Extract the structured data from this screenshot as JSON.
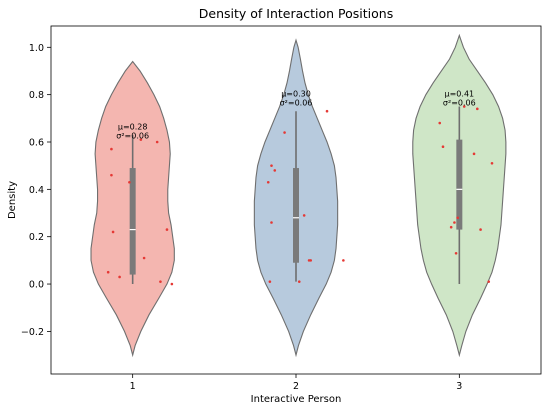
{
  "chart_data": {
    "type": "violin",
    "title": "Density of Interaction Positions",
    "xlabel": "Interactive Person",
    "ylabel": "Density",
    "ylim": [
      -0.38,
      1.09
    ],
    "xlim": [
      0.5,
      3.5
    ],
    "yticks": [
      -0.2,
      0.0,
      0.2,
      0.4,
      0.6,
      0.8,
      1.0
    ],
    "ytick_labels": [
      "−0.2",
      "0.0",
      "0.2",
      "0.4",
      "0.6",
      "0.8",
      "1.0"
    ],
    "categories": [
      1,
      2,
      3
    ],
    "category_labels": [
      "1",
      "2",
      "3"
    ],
    "grid": false,
    "violins": [
      {
        "category": 1,
        "color": "#f4b6b0",
        "mean_label": "μ=0.28",
        "var_label": "σ²=0.06",
        "annot_y": 0.64,
        "whisker": [
          0.0,
          0.63
        ],
        "box": [
          0.04,
          0.49
        ],
        "median": 0.23,
        "profile": [
          [
            -0.3,
            0.0
          ],
          [
            -0.26,
            0.015
          ],
          [
            -0.2,
            0.05
          ],
          [
            -0.13,
            0.1
          ],
          [
            -0.06,
            0.16
          ],
          [
            0.0,
            0.21
          ],
          [
            0.05,
            0.24
          ],
          [
            0.1,
            0.255
          ],
          [
            0.15,
            0.255
          ],
          [
            0.2,
            0.245
          ],
          [
            0.25,
            0.235
          ],
          [
            0.3,
            0.22
          ],
          [
            0.35,
            0.215
          ],
          [
            0.4,
            0.215
          ],
          [
            0.45,
            0.22
          ],
          [
            0.5,
            0.225
          ],
          [
            0.55,
            0.23
          ],
          [
            0.6,
            0.225
          ],
          [
            0.65,
            0.21
          ],
          [
            0.7,
            0.19
          ],
          [
            0.75,
            0.165
          ],
          [
            0.8,
            0.13
          ],
          [
            0.85,
            0.09
          ],
          [
            0.9,
            0.045
          ],
          [
            0.94,
            0.0
          ]
        ],
        "points": [
          [
            -0.02,
            0.43
          ],
          [
            0.15,
            0.6
          ],
          [
            -0.15,
            0.05
          ],
          [
            -0.08,
            0.03
          ],
          [
            0.07,
            0.11
          ],
          [
            0.17,
            0.01
          ],
          [
            0.24,
            0.0
          ],
          [
            0.21,
            0.23
          ],
          [
            -0.12,
            0.22
          ],
          [
            -0.13,
            0.46
          ],
          [
            -0.13,
            0.57
          ],
          [
            0.05,
            0.61
          ]
        ]
      },
      {
        "category": 2,
        "color": "#b7cadd",
        "mean_label": "μ=0.30",
        "var_label": "σ²=0.06",
        "annot_y": 0.78,
        "whisker": [
          0.01,
          0.73
        ],
        "box": [
          0.09,
          0.49
        ],
        "median": 0.28,
        "profile": [
          [
            -0.3,
            0.0
          ],
          [
            -0.26,
            0.015
          ],
          [
            -0.2,
            0.045
          ],
          [
            -0.13,
            0.09
          ],
          [
            -0.06,
            0.14
          ],
          [
            0.0,
            0.185
          ],
          [
            0.05,
            0.215
          ],
          [
            0.1,
            0.235
          ],
          [
            0.15,
            0.245
          ],
          [
            0.2,
            0.25
          ],
          [
            0.25,
            0.255
          ],
          [
            0.3,
            0.255
          ],
          [
            0.35,
            0.255
          ],
          [
            0.4,
            0.25
          ],
          [
            0.45,
            0.245
          ],
          [
            0.5,
            0.235
          ],
          [
            0.55,
            0.215
          ],
          [
            0.6,
            0.19
          ],
          [
            0.65,
            0.16
          ],
          [
            0.7,
            0.13
          ],
          [
            0.75,
            0.1
          ],
          [
            0.8,
            0.075
          ],
          [
            0.85,
            0.055
          ],
          [
            0.9,
            0.04
          ],
          [
            0.95,
            0.027
          ],
          [
            1.0,
            0.013
          ],
          [
            1.03,
            0.0
          ]
        ],
        "points": [
          [
            -0.17,
            0.43
          ],
          [
            -0.15,
            0.26
          ],
          [
            -0.16,
            0.01
          ],
          [
            -0.07,
            0.64
          ],
          [
            -0.15,
            0.5
          ],
          [
            -0.13,
            0.48
          ],
          [
            0.02,
            0.01
          ],
          [
            0.05,
            0.29
          ],
          [
            0.08,
            0.1
          ],
          [
            0.09,
            0.1
          ],
          [
            0.29,
            0.1
          ],
          [
            0.19,
            0.73
          ]
        ]
      },
      {
        "category": 3,
        "color": "#cfe6c7",
        "mean_label": "μ=0.41",
        "var_label": "σ²=0.06",
        "annot_y": 0.78,
        "whisker": [
          0.0,
          0.75
        ],
        "box": [
          0.23,
          0.61
        ],
        "median": 0.4,
        "profile": [
          [
            -0.3,
            0.0
          ],
          [
            -0.26,
            0.015
          ],
          [
            -0.2,
            0.04
          ],
          [
            -0.13,
            0.08
          ],
          [
            -0.06,
            0.13
          ],
          [
            0.0,
            0.17
          ],
          [
            0.05,
            0.2
          ],
          [
            0.1,
            0.22
          ],
          [
            0.15,
            0.235
          ],
          [
            0.2,
            0.245
          ],
          [
            0.25,
            0.255
          ],
          [
            0.3,
            0.26
          ],
          [
            0.35,
            0.265
          ],
          [
            0.4,
            0.27
          ],
          [
            0.45,
            0.275
          ],
          [
            0.5,
            0.28
          ],
          [
            0.55,
            0.285
          ],
          [
            0.6,
            0.285
          ],
          [
            0.65,
            0.28
          ],
          [
            0.7,
            0.265
          ],
          [
            0.75,
            0.24
          ],
          [
            0.8,
            0.205
          ],
          [
            0.85,
            0.16
          ],
          [
            0.9,
            0.11
          ],
          [
            0.95,
            0.06
          ],
          [
            1.0,
            0.025
          ],
          [
            1.05,
            0.0
          ]
        ],
        "points": [
          [
            -0.12,
            0.68
          ],
          [
            -0.1,
            0.58
          ],
          [
            0.03,
            0.75
          ],
          [
            -0.05,
            0.24
          ],
          [
            -0.03,
            0.26
          ],
          [
            -0.01,
            0.28
          ],
          [
            -0.02,
            0.13
          ],
          [
            0.09,
            0.55
          ],
          [
            0.11,
            0.74
          ],
          [
            0.2,
            0.51
          ],
          [
            0.13,
            0.23
          ],
          [
            0.18,
            0.01
          ]
        ]
      }
    ]
  }
}
